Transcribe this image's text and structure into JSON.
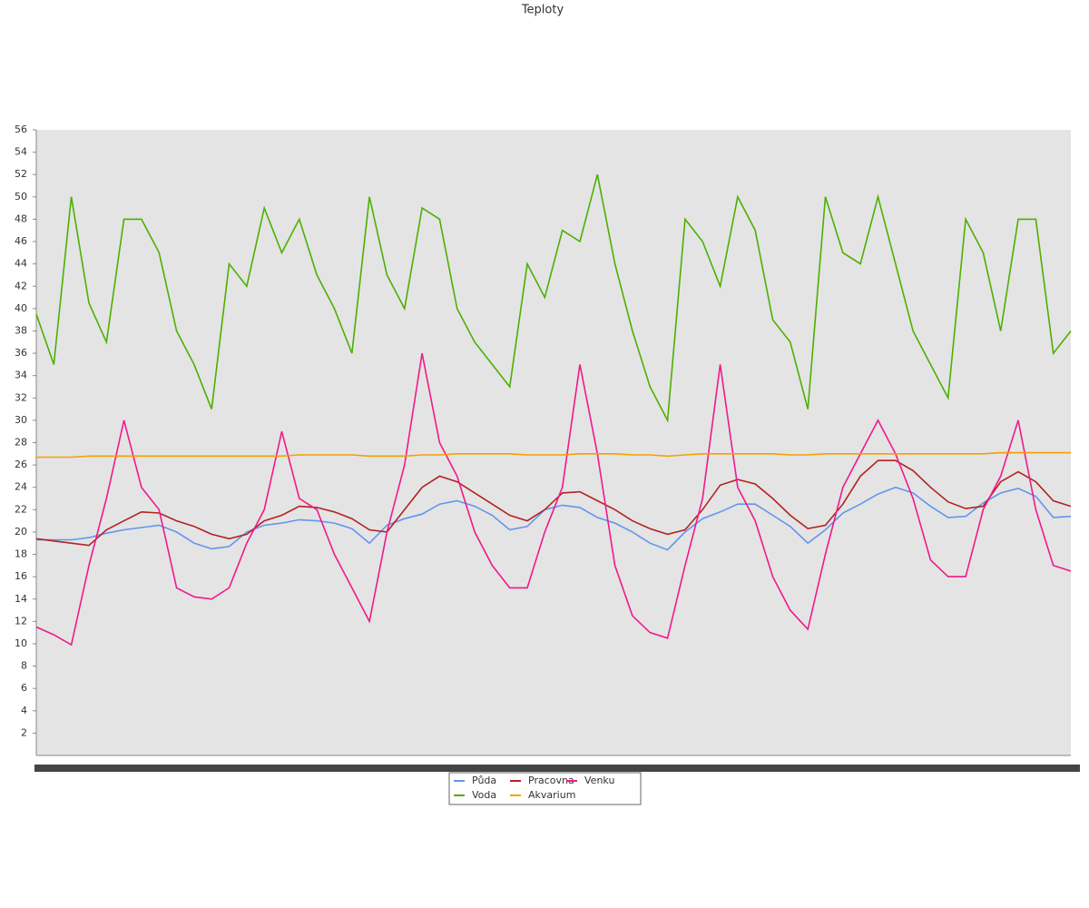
{
  "chart_data": {
    "type": "line",
    "title": "Teploty",
    "categories": [
      null,
      null,
      null,
      null,
      null,
      null,
      null,
      null,
      null,
      null,
      null,
      null,
      null,
      null,
      null,
      null,
      null,
      null,
      null,
      null,
      null,
      null,
      null,
      null,
      null,
      null,
      null,
      null,
      null,
      null,
      null,
      null,
      null,
      null,
      null,
      null,
      null,
      null,
      null,
      null,
      null,
      null,
      null,
      null,
      null,
      null,
      null,
      null,
      null,
      null,
      null,
      null,
      null,
      null,
      null,
      null,
      null,
      null,
      null,
      null
    ],
    "series": [
      {
        "name": "Půda",
        "color": "#6495ed",
        "values": [
          19.3,
          19.3,
          19.3,
          19.5,
          19.9,
          20.2,
          20.4,
          20.6,
          20,
          19,
          18.5,
          18.7,
          20,
          20.6,
          20.8,
          21.1,
          21,
          20.8,
          20.3,
          19,
          20.6,
          21.2,
          21.6,
          22.5,
          22.8,
          22.3,
          21.5,
          20.2,
          20.5,
          22,
          22.4,
          22.2,
          21.3,
          20.8,
          20,
          19,
          18.4,
          20,
          21.2,
          21.8,
          22.5,
          22.5,
          21.5,
          20.5,
          19,
          20.2,
          21.7,
          22.5,
          23.4,
          24,
          23.5,
          22.3,
          21.3,
          21.4,
          22.6,
          23.5,
          23.9,
          23.2,
          21.3,
          21.4
        ]
      },
      {
        "name": "Pracovna",
        "color": "#b22222",
        "values": [
          19.4,
          19.2,
          19,
          18.8,
          20.2,
          21,
          21.8,
          21.7,
          21,
          20.5,
          19.8,
          19.4,
          19.8,
          21,
          21.5,
          22.3,
          22.2,
          21.8,
          21.2,
          20.2,
          20,
          22,
          24,
          25,
          24.5,
          23.5,
          22.5,
          21.5,
          21,
          22,
          23.5,
          23.6,
          22.8,
          22,
          21,
          20.3,
          19.8,
          20.2,
          22,
          24.2,
          24.7,
          24.3,
          23,
          21.5,
          20.3,
          20.6,
          22.5,
          25,
          26.4,
          26.4,
          25.5,
          24,
          22.7,
          22.1,
          22.3,
          24.5,
          25.4,
          24.5,
          22.8,
          22.3
        ]
      },
      {
        "name": "Venku",
        "color": "#f0198c",
        "values": [
          11.5,
          10.8,
          9.9,
          17,
          23,
          30,
          24,
          22,
          15,
          14.2,
          14,
          15,
          19,
          22,
          29,
          23,
          22,
          18,
          15,
          12,
          20,
          26,
          36,
          28,
          25,
          20,
          17,
          15,
          15,
          20,
          24,
          35,
          27,
          17,
          12.5,
          11,
          10.5,
          17,
          23,
          35,
          24,
          21,
          16,
          13,
          11.3,
          18,
          24,
          27,
          30,
          27,
          23,
          17.5,
          16,
          16,
          22,
          25,
          30,
          22,
          17,
          16.5
        ]
      },
      {
        "name": "Voda",
        "color": "#4cb000",
        "values": [
          39.5,
          35,
          50,
          40.5,
          37,
          48,
          48,
          45,
          38,
          35,
          31,
          44,
          42,
          49,
          45,
          48,
          43,
          40,
          36,
          50,
          43,
          40,
          49,
          48,
          40,
          37,
          35,
          33,
          44,
          41,
          47,
          46,
          52,
          44,
          38,
          33,
          30,
          48,
          46,
          42,
          50,
          47,
          39,
          37,
          31,
          50,
          45,
          44,
          50,
          44,
          38,
          35,
          32,
          48,
          45,
          38,
          48,
          48,
          36,
          38
        ]
      },
      {
        "name": "Akvarium",
        "color": "#f5a000",
        "values": [
          26.7,
          26.7,
          26.7,
          26.8,
          26.8,
          26.8,
          26.8,
          26.8,
          26.8,
          26.8,
          26.8,
          26.8,
          26.8,
          26.8,
          26.8,
          26.9,
          26.9,
          26.9,
          26.9,
          26.8,
          26.8,
          26.8,
          26.9,
          26.9,
          27,
          27,
          27,
          27,
          26.9,
          26.9,
          26.9,
          27,
          27,
          27,
          26.9,
          26.9,
          26.8,
          26.9,
          27,
          27,
          27,
          27,
          27,
          26.9,
          26.9,
          27,
          27,
          27,
          27,
          27,
          27,
          27,
          27,
          27,
          27,
          27.1,
          27.1,
          27.1,
          27.1,
          27.1
        ]
      }
    ],
    "ylim": [
      0,
      56
    ],
    "yticks": [
      2,
      4,
      6,
      8,
      10,
      12,
      14,
      16,
      18,
      20,
      22,
      24,
      26,
      28,
      30,
      32,
      34,
      36,
      38,
      40,
      42,
      44,
      46,
      48,
      50,
      52,
      54,
      56
    ]
  }
}
